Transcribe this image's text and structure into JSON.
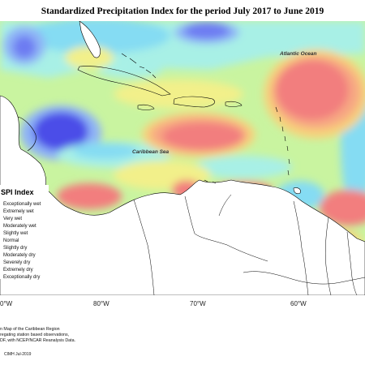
{
  "title": "Standardized Precipitation Index for the period July 2017 to June 2019",
  "map_labels": {
    "ocean": "Atlantic Ocean",
    "sea": "Caribbean Sea"
  },
  "legend": {
    "title": "SPI Index",
    "items": [
      {
        "label": "Exceptionally wet",
        "color": "#4b4ee8"
      },
      {
        "label": "Extremely wet",
        "color": "#6d7cf2"
      },
      {
        "label": "Very wet",
        "color": "#8fb4f6"
      },
      {
        "label": "Moderately wet",
        "color": "#85dcf3"
      },
      {
        "label": "Slightly wet",
        "color": "#a8f0e6"
      },
      {
        "label": "Normal",
        "color": "#c9f4a0"
      },
      {
        "label": "Slightly dry",
        "color": "#f2f08a"
      },
      {
        "label": "Moderately dry",
        "color": "#f7d27a"
      },
      {
        "label": "Severely dry",
        "color": "#f7a883"
      },
      {
        "label": "Extremely dry",
        "color": "#f27e7e"
      },
      {
        "label": "Exceptionally dry",
        "color": "#e85b6b"
      }
    ]
  },
  "longitude_labels": [
    "0°W",
    "80°W",
    "70°W",
    "60°W"
  ],
  "footer_lines": [
    "n Map of the Caribbean Region",
    "regating station based observations,",
    "DF, with NCEP/NCAR Reanalysis Data."
  ],
  "credit": "CIMH Jul-2019"
}
